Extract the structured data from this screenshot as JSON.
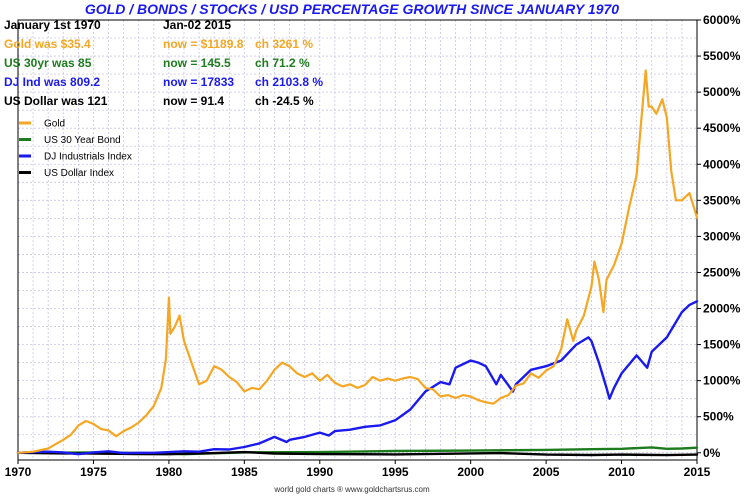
{
  "chart_data": {
    "type": "line",
    "title": "GOLD / BONDS / STOCKS / USD PERCENTAGE GROWTH SINCE JANUARY 1970",
    "xlabel": "",
    "ylabel": "",
    "xlim": [
      1970,
      2015
    ],
    "ylim": [
      -100,
      6000
    ],
    "x_ticks": [
      "1970",
      "1975",
      "1980",
      "1985",
      "1990",
      "1995",
      "2000",
      "2005",
      "2010",
      "2015"
    ],
    "x_tick_values": [
      1970,
      1975,
      1980,
      1985,
      1990,
      1995,
      2000,
      2005,
      2010,
      2015
    ],
    "y_ticks": [
      "0%",
      "500%",
      "1000%",
      "1500%",
      "2000%",
      "2500%",
      "3000%",
      "3500%",
      "4000%",
      "4500%",
      "5000%",
      "5500%",
      "6000%"
    ],
    "y_tick_values": [
      0,
      500,
      1000,
      1500,
      2000,
      2500,
      3000,
      3500,
      4000,
      4500,
      5000,
      5500,
      6000
    ],
    "grid": true,
    "legend_position": "top-left",
    "info_rows": [
      {
        "c1": "January 1st 1970",
        "c2": "Jan-02  2015",
        "c3": "",
        "color": "#000000"
      },
      {
        "c1": "Gold was $35.4",
        "c2": "now = $1189.8",
        "c3": "ch 3261 %",
        "color": "#f5a623"
      },
      {
        "c1": "US 30yr was 85",
        "c2": "now = 145.5",
        "c3": "ch 71.2 %",
        "color": "#1e7b1e"
      },
      {
        "c1": "DJ Ind was 809.2",
        "c2": "now = 17833",
        "c3": "ch 2103.8 %",
        "color": "#1a1aee"
      },
      {
        "c1": "US Dollar was 121",
        "c2": "now = 91.4",
        "c3": "ch -24.5 %",
        "color": "#000000"
      }
    ],
    "footer": "world gold charts ® www.goldchartsrus.com",
    "series": [
      {
        "name": "Gold",
        "color": "#f5a623",
        "x": [
          1970,
          1971,
          1972,
          1972.5,
          1973,
          1973.5,
          1974,
          1974.5,
          1975,
          1975.5,
          1976,
          1976.5,
          1977,
          1977.5,
          1978,
          1978.5,
          1979,
          1979.5,
          1979.8,
          1980.0,
          1980.1,
          1980.4,
          1980.7,
          1981.0,
          1981.5,
          1982.0,
          1982.5,
          1983.0,
          1983.5,
          1984.0,
          1984.5,
          1985.0,
          1985.5,
          1986.0,
          1986.5,
          1987.0,
          1987.5,
          1988.0,
          1988.5,
          1989.0,
          1989.5,
          1990.0,
          1990.5,
          1991.0,
          1991.5,
          1992.0,
          1992.5,
          1993.0,
          1993.5,
          1994.0,
          1994.5,
          1995.0,
          1995.5,
          1996.0,
          1996.5,
          1997.0,
          1997.5,
          1998.0,
          1998.5,
          1999.0,
          1999.5,
          2000.0,
          2000.5,
          2001.0,
          2001.5,
          2002.0,
          2002.5,
          2003.0,
          2003.5,
          2004.0,
          2004.5,
          2005.0,
          2005.5,
          2006.0,
          2006.4,
          2006.8,
          2007.0,
          2007.5,
          2008.0,
          2008.2,
          2008.5,
          2008.8,
          2009.0,
          2009.5,
          2010.0,
          2010.5,
          2011.0,
          2011.3,
          2011.6,
          2011.8,
          2012.0,
          2012.3,
          2012.7,
          2013.0,
          2013.3,
          2013.6,
          2014.0,
          2014.5,
          2015.0
        ],
        "values": [
          0,
          15,
          60,
          120,
          180,
          250,
          380,
          440,
          400,
          330,
          310,
          230,
          300,
          350,
          420,
          520,
          650,
          900,
          1300,
          2150,
          1650,
          1750,
          1900,
          1550,
          1250,
          950,
          1000,
          1200,
          1150,
          1050,
          980,
          850,
          900,
          880,
          1000,
          1150,
          1250,
          1200,
          1100,
          1050,
          1100,
          1000,
          1080,
          970,
          920,
          950,
          900,
          940,
          1050,
          1000,
          1030,
          1000,
          1030,
          1050,
          1020,
          900,
          880,
          780,
          800,
          760,
          800,
          780,
          730,
          700,
          680,
          760,
          800,
          930,
          960,
          1100,
          1040,
          1140,
          1200,
          1440,
          1850,
          1550,
          1700,
          1900,
          2300,
          2650,
          2400,
          1950,
          2400,
          2600,
          2900,
          3400,
          3850,
          4600,
          5300,
          4800,
          4800,
          4700,
          4900,
          4650,
          3900,
          3500,
          3500,
          3600,
          3260
        ]
      },
      {
        "name": "US 30 Year Bond",
        "color": "#1e7b1e",
        "x": [
          1970,
          1975,
          1980,
          1981,
          1985,
          1990,
          1995,
          2000,
          2005,
          2008,
          2010,
          2012,
          2013,
          2014,
          2015
        ],
        "values": [
          0,
          5,
          -8,
          -20,
          5,
          10,
          25,
          30,
          40,
          50,
          55,
          75,
          55,
          60,
          71
        ]
      },
      {
        "name": "DJ Industrials Index",
        "color": "#1a1aee",
        "x": [
          1970,
          1971,
          1972,
          1973,
          1974,
          1975,
          1976,
          1977,
          1978,
          1979,
          1980,
          1981,
          1982,
          1983,
          1984,
          1985,
          1986,
          1987,
          1987.8,
          1988,
          1989,
          1990,
          1990.6,
          1991,
          1992,
          1993,
          1994,
          1995,
          1996,
          1997,
          1998,
          1998.6,
          1999,
          2000,
          2000.5,
          2001,
          2001.7,
          2002,
          2002.8,
          2003,
          2004,
          2005,
          2006,
          2007,
          2007.8,
          2008,
          2008.5,
          2009.0,
          2009.2,
          2009.5,
          2010,
          2011,
          2011.7,
          2012,
          2013,
          2014,
          2014.5,
          2015
        ],
        "values": [
          0,
          10,
          15,
          5,
          -20,
          5,
          20,
          -5,
          0,
          0,
          10,
          20,
          15,
          50,
          45,
          80,
          130,
          220,
          150,
          180,
          220,
          280,
          240,
          300,
          320,
          360,
          380,
          450,
          600,
          850,
          980,
          950,
          1180,
          1280,
          1250,
          1200,
          950,
          1080,
          850,
          950,
          1150,
          1200,
          1280,
          1500,
          1600,
          1550,
          1250,
          900,
          750,
          900,
          1100,
          1350,
          1180,
          1400,
          1600,
          1950,
          2050,
          2100
        ]
      },
      {
        "name": "US Dollar Index",
        "color": "#000000",
        "x": [
          1970,
          1973,
          1975,
          1978,
          1980,
          1983,
          1985,
          1987,
          1990,
          1995,
          2000,
          2002,
          2005,
          2008,
          2010,
          2013,
          2015
        ],
        "values": [
          0,
          -8,
          -10,
          -18,
          -20,
          -5,
          10,
          -10,
          -18,
          -22,
          -8,
          -5,
          -25,
          -30,
          -25,
          -32,
          -24.5
        ]
      }
    ]
  }
}
